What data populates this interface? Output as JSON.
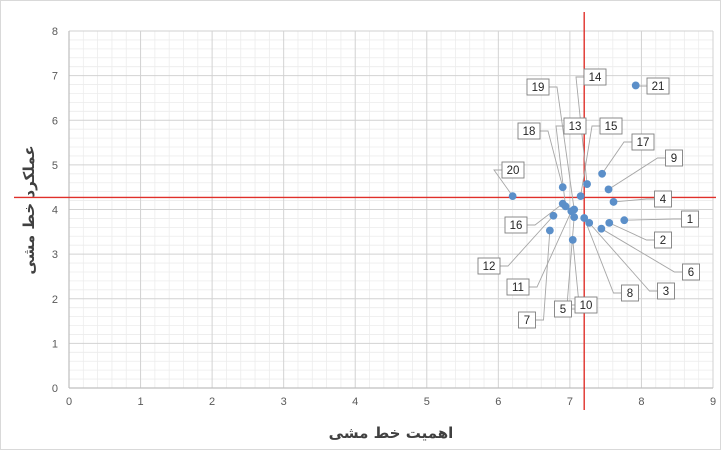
{
  "chart_data": {
    "type": "scatter",
    "xlabel": "اهمیت خط مشی",
    "ylabel": "عملکرد خط مشی",
    "xlim": [
      0,
      9
    ],
    "ylim": [
      0,
      8
    ],
    "x_ticks": [
      "0",
      "1",
      "2",
      "3",
      "4",
      "5",
      "6",
      "7",
      "8",
      "9"
    ],
    "y_ticks": [
      "0",
      "1",
      "2",
      "3",
      "4",
      "5",
      "6",
      "7",
      "8"
    ],
    "grid": "major and minor",
    "reference_lines": {
      "x": 7.2,
      "y": 4.27,
      "color": "#e0302a"
    },
    "point_color": "#5b8fc9",
    "points": [
      {
        "label": "1",
        "x": 7.76,
        "y": 3.76
      },
      {
        "label": "2",
        "x": 7.55,
        "y": 3.7
      },
      {
        "label": "3",
        "x": 7.27,
        "y": 3.7
      },
      {
        "label": "4",
        "x": 7.61,
        "y": 4.17
      },
      {
        "label": "5",
        "x": 7.04,
        "y": 3.32
      },
      {
        "label": "6",
        "x": 7.44,
        "y": 3.57
      },
      {
        "label": "7",
        "x": 6.72,
        "y": 3.53
      },
      {
        "label": "8",
        "x": 7.2,
        "y": 3.81
      },
      {
        "label": "9",
        "x": 7.54,
        "y": 4.45
      },
      {
        "label": "10",
        "x": 7.06,
        "y": 3.83
      },
      {
        "label": "11",
        "x": 7.02,
        "y": 3.96
      },
      {
        "label": "12",
        "x": 6.77,
        "y": 3.86
      },
      {
        "label": "13",
        "x": 6.94,
        "y": 4.07
      },
      {
        "label": "14",
        "x": 7.24,
        "y": 4.57
      },
      {
        "label": "15",
        "x": 7.15,
        "y": 4.3
      },
      {
        "label": "16",
        "x": 6.9,
        "y": 4.13
      },
      {
        "label": "17",
        "x": 7.45,
        "y": 4.8
      },
      {
        "label": "18",
        "x": 6.9,
        "y": 4.5
      },
      {
        "label": "19",
        "x": 7.06,
        "y": 4.0
      },
      {
        "label": "20",
        "x": 6.2,
        "y": 4.3
      },
      {
        "label": "21",
        "x": 7.92,
        "y": 6.78
      }
    ]
  }
}
